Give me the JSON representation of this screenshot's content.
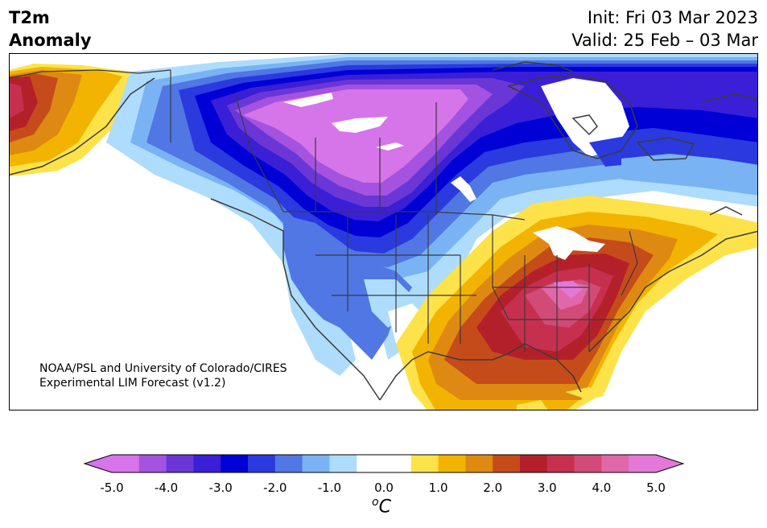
{
  "header": {
    "title_line1": "T2m",
    "title_line2": "Anomaly",
    "init_line": "Init: Fri 03 Mar 2023",
    "valid_line": "Valid: 25 Feb – 03 Mar"
  },
  "map": {
    "region": "North America",
    "variable": "2 m temperature anomaly",
    "credit_line1": "NOAA/PSL and University of Colorado/CIRES",
    "credit_line2": "Experimental LIM Forecast (v1.2)",
    "colors": {
      "extreme_cold": "#d674ea",
      "deep_cold": "#6a37d6",
      "cold": "#1a1fd8",
      "cool": "#5077e4",
      "mild_cool": "#aedcfc",
      "neutral": "#ffffff",
      "mild_warm": "#fde24a",
      "warm": "#f2b400",
      "hot": "#c64b1a",
      "very_hot": "#b4202a",
      "extreme_hot": "#e478d8",
      "borders": "#3a3a3a"
    }
  },
  "colorbar": {
    "tick_labels": [
      "-5.0",
      "-4.0",
      "-3.0",
      "-2.0",
      "-1.0",
      "0.0",
      "1.0",
      "2.0",
      "3.0",
      "4.0",
      "5.0"
    ],
    "units_base": "C",
    "units_sup": "o",
    "colors": [
      "#d674ea",
      "#a452e0",
      "#6a37d6",
      "#3a1fd6",
      "#0000d6",
      "#2a3ade",
      "#5077e4",
      "#79b3f4",
      "#aedcfc",
      "#ffffff",
      "#ffffff",
      "#fde24a",
      "#f2b400",
      "#de8a12",
      "#c64b1a",
      "#b4202a",
      "#c6304e",
      "#d24a78",
      "#e068a8",
      "#e478d8"
    ]
  }
}
